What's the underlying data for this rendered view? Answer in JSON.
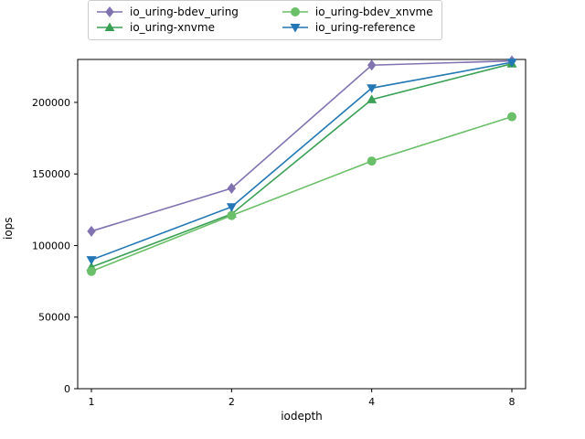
{
  "chart_data": {
    "type": "line",
    "x": [
      1,
      2,
      4,
      8
    ],
    "x_scale": "evenly-spaced (log2-like)",
    "xlabel": "iodepth",
    "ylabel": "iops",
    "ylim": [
      0,
      230000
    ],
    "yticks": [
      0,
      50000,
      100000,
      150000,
      200000
    ],
    "grid": false,
    "legend_position": "top",
    "legend_columns": 2,
    "series": [
      {
        "name": "io_uring-bdev_uring",
        "color": "#8172b2",
        "marker": "diamond",
        "values": [
          110000,
          140000,
          226000,
          229000
        ]
      },
      {
        "name": "io_uring-xnvme",
        "color": "#39a055",
        "marker": "triangle-up",
        "values": [
          85000,
          122000,
          202000,
          227000
        ]
      },
      {
        "name": "io_uring-bdev_xnvme",
        "color": "#6abf69",
        "marker": "circle",
        "values": [
          82000,
          121000,
          159000,
          190000
        ]
      },
      {
        "name": "io_uring-reference",
        "color": "#2277b4",
        "marker": "triangle-down",
        "values": [
          90000,
          127000,
          210000,
          228000
        ]
      }
    ]
  }
}
